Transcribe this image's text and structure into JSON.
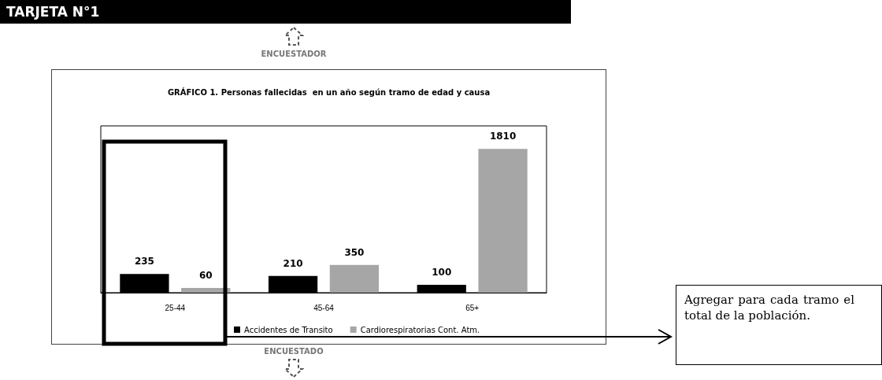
{
  "chart_data": {
    "type": "bar",
    "title": "GRÁFICO 1. Personas fallecidas  en un año según tramo de edad y causa",
    "categories": [
      "25-44",
      "45-64",
      "65+"
    ],
    "series": [
      {
        "name": "Accidentes de Transito",
        "color": "#000000",
        "values": [
          235,
          210,
          100
        ]
      },
      {
        "name": "Cardiorespiratorias Cont. Atm.",
        "color": "#a6a6a6",
        "values": [
          60,
          350,
          1810
        ]
      }
    ],
    "data_labels": true,
    "legend": "bottom",
    "grid": false,
    "annotations": [
      "TARJETA N°1",
      "ENCUESTADOR",
      "ENCUESTADO",
      "Agregar para cada tramo el total de la población."
    ]
  }
}
